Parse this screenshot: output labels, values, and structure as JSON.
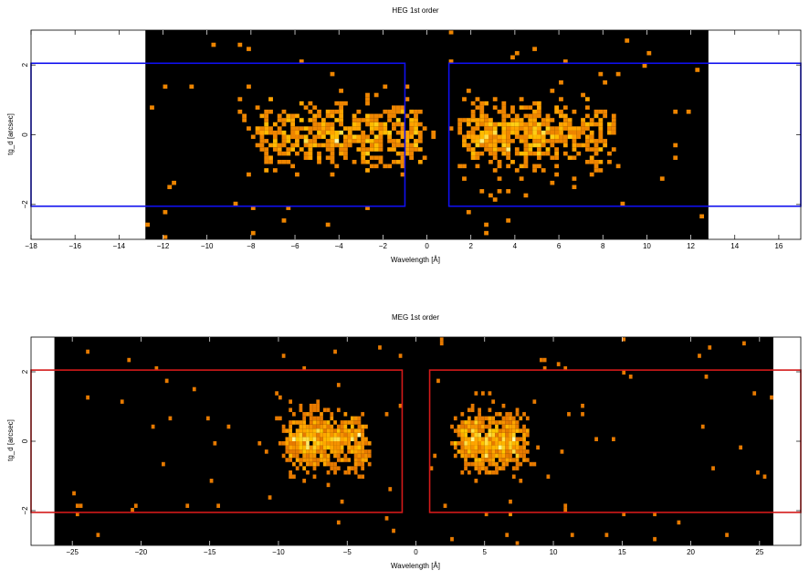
{
  "chart_data": [
    {
      "type": "heatmap",
      "title": "HEG 1st order",
      "xlabel": "Wavelength [Å]",
      "ylabel": "tg_d [arcsec]",
      "xlim": [
        -18,
        17
      ],
      "ylim": [
        -3,
        3
      ],
      "x_ticks": [
        -18,
        -16,
        -14,
        -12,
        -10,
        -8,
        -6,
        -4,
        -2,
        0,
        2,
        4,
        6,
        8,
        10,
        12,
        14,
        16
      ],
      "x_tick_labels": [
        "−18",
        "−16",
        "−14",
        "−12",
        "−10",
        "−8",
        "−6",
        "−4",
        "−2",
        "0",
        "2",
        "4",
        "6",
        "8",
        "10",
        "12",
        "14",
        "16"
      ],
      "y_ticks": [
        -2,
        0,
        2
      ],
      "y_tick_labels": [
        "−2",
        "0",
        "2"
      ],
      "colormap": "black-to-yellow (heat)",
      "detector_extent_x": [
        -12.8,
        12.8
      ],
      "extraction_regions": [
        {
          "x": [
            -18,
            -1
          ],
          "y": [
            -2.05,
            2.05
          ]
        },
        {
          "x": [
            1,
            17
          ],
          "y": [
            -2.05,
            2.05
          ]
        }
      ],
      "region_color": "#1010ee",
      "source_clusters": [
        {
          "center_x": -4.0,
          "spread_x": 3.2,
          "count": 520
        },
        {
          "center_x": 3.5,
          "spread_x": 1.6,
          "count": 320
        },
        {
          "center_x": 6.5,
          "spread_x": 1.5,
          "count": 200
        }
      ],
      "source_spread_y": 0.45,
      "bin_size_x": 0.2,
      "bin_size_y": 0.12
    },
    {
      "type": "heatmap",
      "title": "MEG 1st order",
      "xlabel": "Wavelength [Å]",
      "ylabel": "tg_d [arcsec]",
      "xlim": [
        -28,
        28
      ],
      "ylim": [
        -3,
        3
      ],
      "x_ticks": [
        -25,
        -20,
        -15,
        -10,
        -5,
        0,
        5,
        10,
        15,
        20,
        25
      ],
      "x_tick_labels": [
        "−25",
        "−20",
        "−15",
        "−10",
        "−5",
        "0",
        "5",
        "10",
        "15",
        "20",
        "25"
      ],
      "y_ticks": [
        -2,
        0,
        2
      ],
      "y_tick_labels": [
        "−2",
        "0",
        "2"
      ],
      "colormap": "black-to-yellow (heat)",
      "detector_extent_x": [
        -26.3,
        26
      ],
      "extraction_regions": [
        {
          "x": [
            -28,
            -1
          ],
          "y": [
            -2.05,
            2.05
          ]
        },
        {
          "x": [
            1,
            28
          ],
          "y": [
            -2.05,
            2.05
          ]
        }
      ],
      "region_color": "#d41a1a",
      "source_clusters": [
        {
          "center_x": -6.5,
          "spread_x": 2.4,
          "count": 650
        },
        {
          "center_x": 5.5,
          "spread_x": 2.0,
          "count": 600
        }
      ],
      "source_spread_y": 0.4,
      "bin_size_x": 0.25,
      "bin_size_y": 0.12
    }
  ]
}
